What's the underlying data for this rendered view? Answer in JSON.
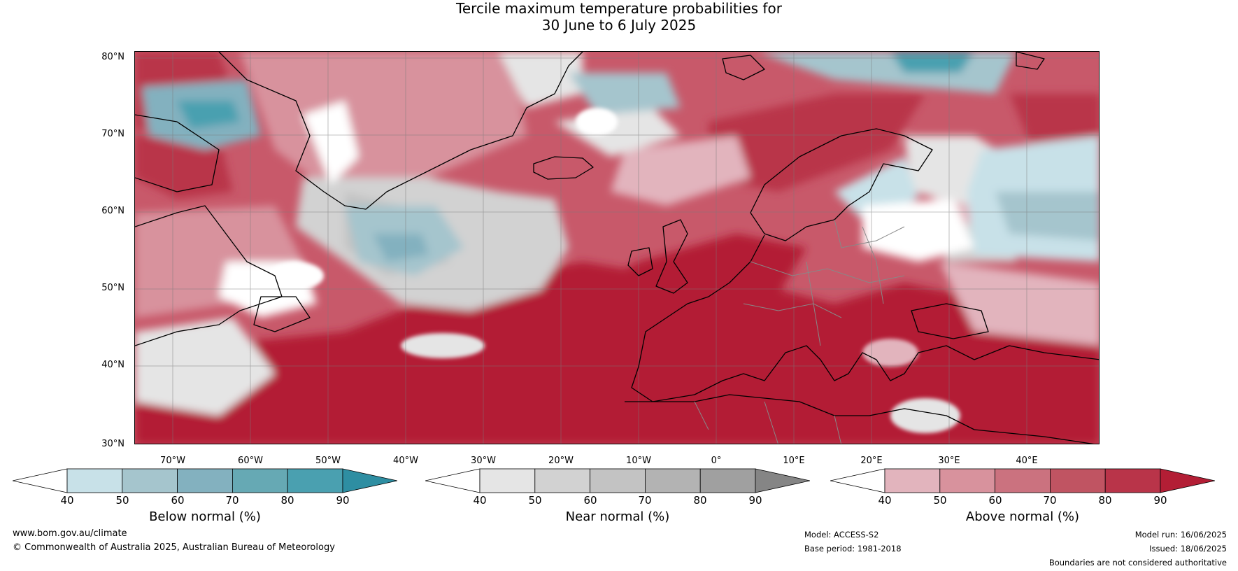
{
  "title": {
    "line1": "Tercile maximum temperature probabilities for",
    "line2": "30 June to 6 July 2025"
  },
  "map": {
    "latitude_labels": [
      "80°N",
      "70°N",
      "60°N",
      "50°N",
      "40°N",
      "30°N"
    ],
    "longitude_labels": [
      "70°W",
      "60°W",
      "50°W",
      "40°W",
      "30°W",
      "20°W",
      "10°W",
      "0°",
      "10°E",
      "20°E",
      "30°E",
      "40°E"
    ],
    "extent": {
      "lon_min": -75,
      "lon_max": 50,
      "lat_min": 30,
      "lat_max": 81
    },
    "colors": {
      "ocean_hot": "#b31e35",
      "above": [
        "#e2b4bd",
        "#d8929d",
        "#cb727f",
        "#c05462",
        "#b93449",
        "#b31e35"
      ],
      "near": [
        "#e5e5e5",
        "#d2d2d2",
        "#c3c3c3",
        "#b3b3b3",
        "#a0a0a0",
        "#858585"
      ],
      "below": [
        "#c8e1e8",
        "#a5c5cd",
        "#83b1bf",
        "#66a9b4",
        "#4aa0b0",
        "#2e8ea2"
      ]
    }
  },
  "colorbars": [
    {
      "label": "Below normal (%)",
      "ticks": [
        "40",
        "50",
        "60",
        "70",
        "80",
        "90"
      ],
      "start_color": "#ffffff",
      "colors": [
        "#c8e1e8",
        "#a5c5cd",
        "#83b1bf",
        "#66a9b4",
        "#4aa0b0"
      ],
      "end_color": "#2e8ea2"
    },
    {
      "label": "Near normal (%)",
      "ticks": [
        "40",
        "50",
        "60",
        "70",
        "80",
        "90"
      ],
      "start_color": "#ffffff",
      "colors": [
        "#e5e5e5",
        "#d2d2d2",
        "#c3c3c3",
        "#b3b3b3",
        "#a0a0a0"
      ],
      "end_color": "#858585"
    },
    {
      "label": "Above normal (%)",
      "ticks": [
        "40",
        "50",
        "60",
        "70",
        "80",
        "90"
      ],
      "start_color": "#ffffff",
      "colors": [
        "#e2b4bd",
        "#d8929d",
        "#cb727f",
        "#c05462",
        "#b93449"
      ],
      "end_color": "#b31e35"
    }
  ],
  "footer": {
    "website": "www.bom.gov.au/climate",
    "copyright": "© Commonwealth of Australia 2025, Australian Bureau of Meteorology",
    "model": "Model: ACCESS-S2",
    "base_period": "Base period: 1981-2018",
    "model_run": "Model run: 16/06/2025",
    "issued": "Issued: 18/06/2025",
    "boundaries": "Boundaries are not considered authoritative"
  }
}
